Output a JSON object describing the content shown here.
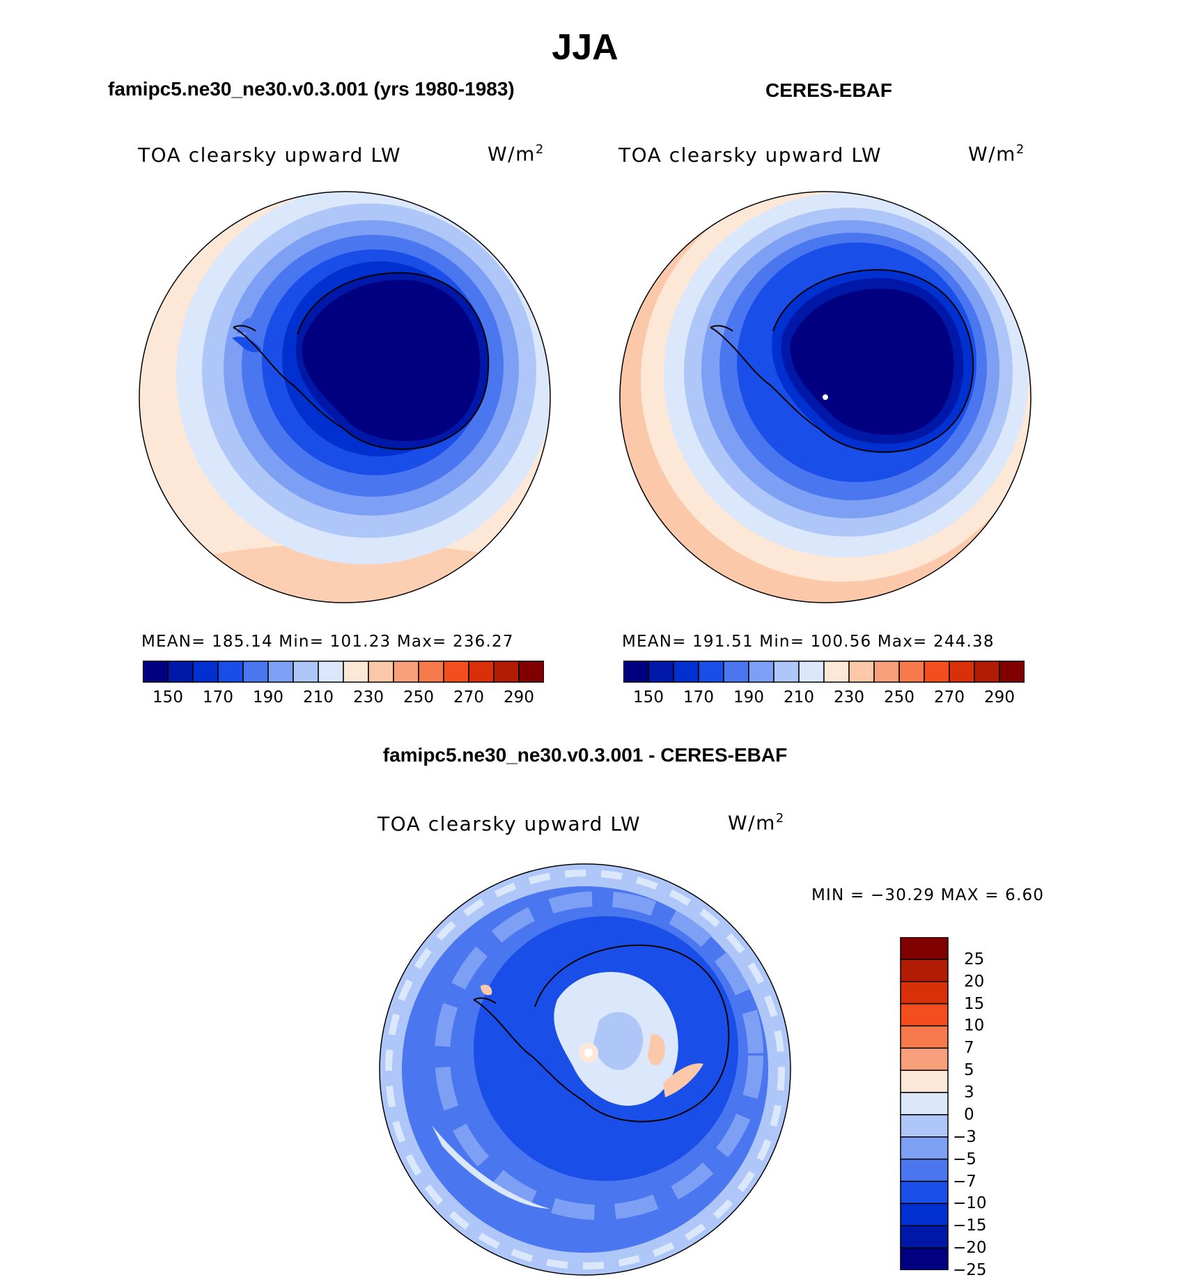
{
  "title": "JJA",
  "panels": {
    "model": {
      "title": "famipc5.ne30_ne30.v0.3.001 (yrs 1980-1983)",
      "variable": "TOA clearsky upward LW",
      "units_base": "W/m",
      "units_exp": "2",
      "stats": "MEAN= 185.14   Min= 101.23   Max= 236.27"
    },
    "obs": {
      "title": "CERES-EBAF",
      "variable": "TOA clearsky upward LW",
      "units_base": "W/m",
      "units_exp": "2",
      "stats": "MEAN= 191.51   Min= 100.56   Max= 244.38"
    },
    "diff": {
      "title": "famipc5.ne30_ne30.v0.3.001 - CERES-EBAF",
      "variable": "TOA clearsky upward LW",
      "units_base": "W/m",
      "units_exp": "2",
      "stats": "MIN = −30.29 MAX =    6.60"
    }
  },
  "colorbar_main": {
    "colors": [
      "#000080",
      "#0018a8",
      "#0030d0",
      "#1a4ee8",
      "#4a76f0",
      "#7ea0f4",
      "#afc6f8",
      "#dbe8fc",
      "#fde8d8",
      "#fbc8aa",
      "#f8a07c",
      "#f67a4c",
      "#f44e1e",
      "#d83008",
      "#b01c04",
      "#800000"
    ],
    "labels": [
      "150",
      "170",
      "190",
      "210",
      "230",
      "250",
      "270",
      "290"
    ]
  },
  "colorbar_diff": {
    "colors": [
      "#800000",
      "#b01c04",
      "#d83008",
      "#f44e1e",
      "#f67a4c",
      "#f8a07c",
      "#fde8d8",
      "#dbe8fc",
      "#afc6f8",
      "#7ea0f4",
      "#4a76f0",
      "#1a4ee8",
      "#0030d0",
      "#0018a8",
      "#000080"
    ],
    "labels": [
      "25",
      "20",
      "15",
      "10",
      "7",
      "5",
      "3",
      "0",
      "−3",
      "−5",
      "−7",
      "−10",
      "−15",
      "−20",
      "−25"
    ]
  }
}
